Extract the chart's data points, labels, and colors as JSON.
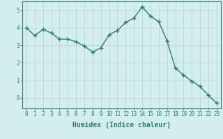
{
  "x": [
    0,
    1,
    2,
    3,
    4,
    5,
    6,
    7,
    8,
    9,
    10,
    11,
    12,
    13,
    14,
    15,
    16,
    17,
    18,
    19,
    20,
    21,
    22,
    23
  ],
  "y": [
    4.0,
    3.55,
    3.9,
    3.7,
    3.35,
    3.35,
    3.2,
    2.95,
    2.62,
    2.85,
    3.6,
    3.85,
    4.3,
    4.55,
    5.2,
    4.65,
    4.35,
    3.25,
    1.7,
    1.3,
    0.95,
    0.65,
    0.15,
    -0.3
  ],
  "line_color": "#2a7d6e",
  "marker": "+",
  "marker_size": 4,
  "marker_edge_width": 1.0,
  "line_width": 1.0,
  "bg_color": "#d4eeed",
  "grid_color": "#b0d4d0",
  "xlabel": "Humidex (Indice chaleur)",
  "xlabel_fontsize": 7,
  "ylim": [
    -0.6,
    5.5
  ],
  "xlim": [
    -0.5,
    23.5
  ],
  "yticks": [
    0,
    1,
    2,
    3,
    4,
    5
  ],
  "xticks": [
    0,
    1,
    2,
    3,
    4,
    5,
    6,
    7,
    8,
    9,
    10,
    11,
    12,
    13,
    14,
    15,
    16,
    17,
    18,
    19,
    20,
    21,
    22,
    23
  ],
  "tick_fontsize": 5.5,
  "tick_color": "#2a7d6e",
  "spine_color": "#2a7d6e"
}
